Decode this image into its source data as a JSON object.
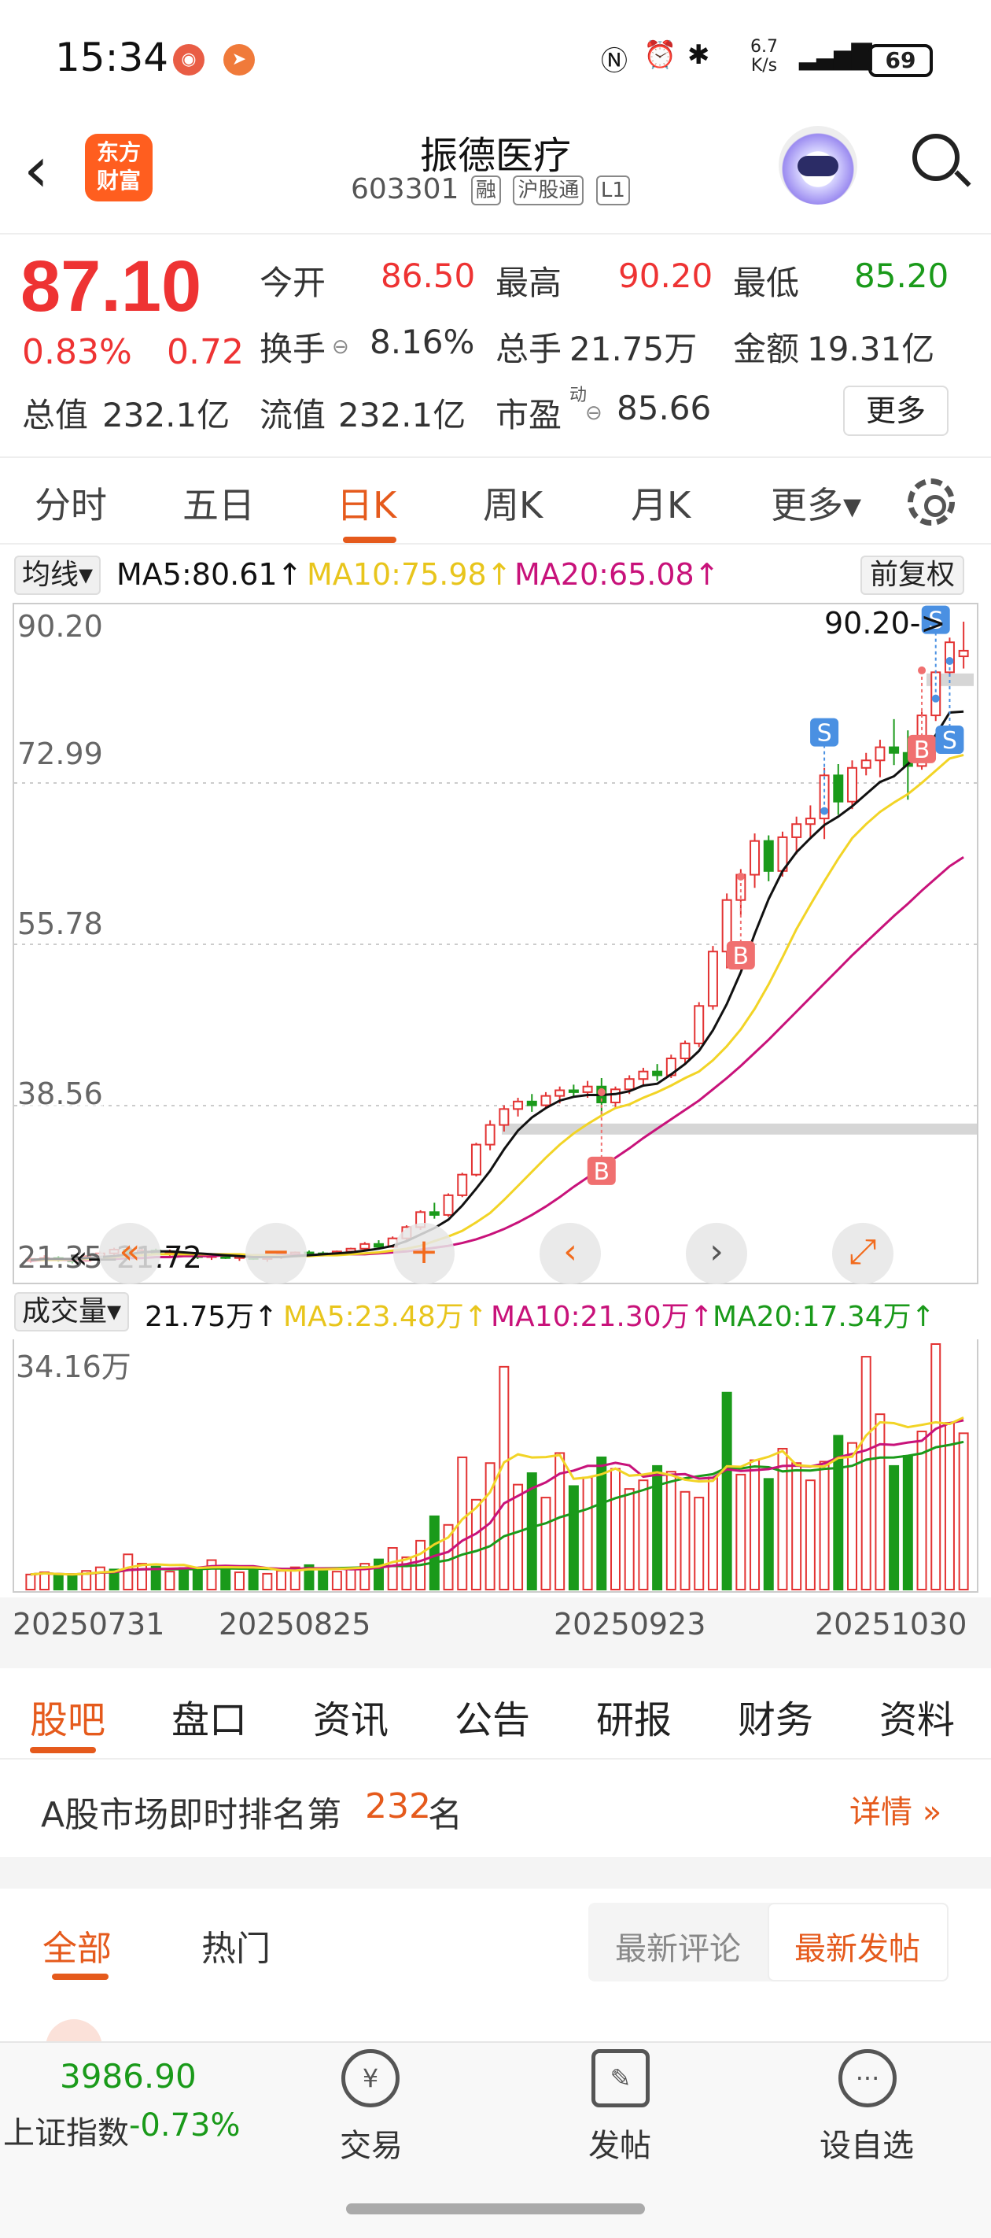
{
  "status_bar": {
    "time": "15:34",
    "net_speed_top": "6.7",
    "net_speed_unit": "K/s",
    "battery": "69"
  },
  "header": {
    "back_icon": "back-arrow",
    "logo_line1": "东方",
    "logo_line2": "财富",
    "title": "振德医疗",
    "code": "603301",
    "tags": [
      "融",
      "沪股通",
      "L1"
    ]
  },
  "quote": {
    "price": "87.10",
    "change_pct": "0.83%",
    "change": "0.72",
    "open_label": "今开",
    "open": "86.50",
    "high_label": "最高",
    "high": "90.20",
    "low_label": "最低",
    "low": "85.20",
    "turnover_label": "换手",
    "turnover": "8.16%",
    "volume_label": "总手",
    "volume": "21.75万",
    "amount_label": "金额",
    "amount": "19.31亿",
    "mktcap_label": "总值",
    "mktcap": "232.1亿",
    "float_label": "流值",
    "float": "232.1亿",
    "pe_label": "市盈",
    "pe_sup": "动",
    "pe": "85.66",
    "more_button": "更多"
  },
  "chart_tabs": [
    "分时",
    "五日",
    "日K",
    "周K",
    "月K",
    "更多▾"
  ],
  "active_tab": "日K",
  "ma_bar": {
    "selector": "均线▾",
    "ma5": "MA5:80.61↑",
    "ma10": "MA10:75.98↑",
    "ma20": "MA20:65.08↑",
    "adjust": "前复权"
  },
  "main_chart": {
    "y_ticks": [
      "90.20",
      "72.99",
      "55.78",
      "38.56",
      "21.35"
    ],
    "high_marker": "90.20->",
    "low_marker": "21.72",
    "signal_s": "S",
    "signal_b": "B"
  },
  "vol_bar": {
    "selector": "成交量▾",
    "vol": "21.75万↑",
    "ma5": "MA5:23.48万↑",
    "ma10": "MA10:21.30万↑",
    "ma20": "MA20:17.34万↑",
    "max": "34.16万"
  },
  "dates": [
    "20250731",
    "20250825",
    "20250923",
    "20251030"
  ],
  "controls": {
    "fast_back": "«",
    "prev": "‹",
    "next": "›",
    "expand": "⤢",
    "zoom_out": "−",
    "zoom_in": "+"
  },
  "sub_tabs": [
    "股吧",
    "盘口",
    "资讯",
    "公告",
    "研报",
    "财务",
    "资料"
  ],
  "rank": {
    "prefix": "A股市场即时排名第",
    "number": "232",
    "suffix": "名",
    "detail": "详情 »"
  },
  "feed": {
    "tabs": [
      "全部",
      "热门"
    ],
    "sort": [
      "最新评论",
      "最新发帖"
    ]
  },
  "bottom": {
    "index_value": "3986.90",
    "index_name": "上证指数",
    "index_change": "-0.73%",
    "trade": "交易",
    "post": "发帖",
    "watch": "设自选"
  },
  "colors": {
    "up": "#e33333",
    "down": "#1a9a1a",
    "accent": "#e55a1c",
    "ma5": "#111111",
    "ma10": "#f2d426",
    "ma20": "#c8127a"
  },
  "chart_data": {
    "type": "candlestick",
    "ylim": [
      21.35,
      90.2
    ],
    "candles": [
      [
        22.0,
        22.3,
        21.8,
        22.2
      ],
      [
        22.2,
        22.6,
        22.0,
        22.3
      ],
      [
        22.3,
        22.5,
        21.9,
        22.1
      ],
      [
        22.1,
        22.4,
        21.72,
        22.0
      ],
      [
        22.0,
        22.6,
        21.9,
        22.5
      ],
      [
        22.5,
        23.0,
        22.3,
        22.8
      ],
      [
        22.8,
        23.4,
        22.6,
        23.2
      ],
      [
        23.2,
        23.5,
        22.8,
        22.9
      ],
      [
        22.9,
        23.3,
        22.6,
        23.1
      ],
      [
        23.1,
        23.3,
        22.7,
        22.8
      ],
      [
        22.8,
        23.2,
        22.5,
        22.9
      ],
      [
        22.9,
        23.0,
        22.4,
        22.6
      ],
      [
        22.6,
        22.9,
        22.2,
        22.4
      ],
      [
        22.4,
        22.7,
        22.1,
        22.6
      ],
      [
        22.6,
        22.8,
        22.2,
        22.3
      ],
      [
        22.3,
        22.6,
        22.0,
        22.5
      ],
      [
        22.5,
        22.7,
        22.1,
        22.2
      ],
      [
        22.2,
        22.5,
        21.9,
        22.4
      ],
      [
        22.4,
        22.8,
        22.2,
        22.7
      ],
      [
        22.7,
        23.0,
        22.5,
        22.9
      ],
      [
        22.9,
        23.1,
        22.6,
        22.8
      ],
      [
        22.8,
        23.0,
        22.5,
        22.7
      ],
      [
        22.7,
        23.1,
        22.6,
        23.0
      ],
      [
        23.0,
        23.4,
        22.8,
        23.3
      ],
      [
        23.3,
        24.0,
        23.1,
        23.8
      ],
      [
        23.8,
        24.2,
        23.3,
        23.5
      ],
      [
        23.5,
        24.6,
        23.4,
        24.4
      ],
      [
        24.4,
        25.8,
        24.2,
        25.6
      ],
      [
        25.6,
        27.4,
        25.3,
        27.2
      ],
      [
        27.2,
        28.2,
        26.5,
        26.9
      ],
      [
        26.9,
        29.2,
        26.7,
        29.0
      ],
      [
        29.0,
        31.4,
        28.8,
        31.2
      ],
      [
        31.2,
        34.6,
        31.0,
        34.4
      ],
      [
        34.4,
        37.0,
        33.8,
        36.5
      ],
      [
        36.5,
        38.6,
        35.8,
        38.2
      ],
      [
        38.2,
        39.4,
        37.4,
        39.0
      ],
      [
        39.0,
        39.8,
        37.9,
        38.6
      ],
      [
        38.6,
        40.0,
        38.2,
        39.6
      ],
      [
        39.6,
        40.6,
        38.8,
        40.2
      ],
      [
        40.2,
        40.8,
        39.5,
        40.0
      ],
      [
        40.0,
        41.2,
        39.4,
        40.6
      ],
      [
        40.6,
        41.5,
        37.6,
        38.9
      ],
      [
        38.9,
        40.6,
        38.2,
        40.3
      ],
      [
        40.3,
        41.8,
        39.8,
        41.4
      ],
      [
        41.4,
        42.6,
        40.8,
        42.2
      ],
      [
        42.2,
        43.0,
        41.2,
        41.8
      ],
      [
        41.8,
        44.0,
        41.5,
        43.6
      ],
      [
        43.6,
        45.5,
        43.0,
        45.2
      ],
      [
        45.2,
        49.6,
        44.8,
        49.2
      ],
      [
        49.2,
        55.6,
        48.8,
        55.0
      ],
      [
        55.0,
        61.2,
        53.2,
        60.5
      ],
      [
        60.5,
        63.8,
        58.9,
        63.2
      ],
      [
        63.2,
        67.6,
        61.8,
        66.8
      ],
      [
        66.8,
        67.4,
        62.5,
        63.6
      ],
      [
        63.6,
        67.8,
        63.0,
        67.2
      ],
      [
        67.2,
        69.4,
        65.4,
        68.6
      ],
      [
        68.6,
        70.6,
        67.2,
        69.2
      ],
      [
        69.2,
        74.6,
        67.0,
        73.8
      ],
      [
        73.8,
        75.0,
        69.6,
        71.0
      ],
      [
        71.0,
        75.4,
        70.2,
        74.6
      ],
      [
        74.6,
        76.2,
        73.8,
        75.4
      ],
      [
        75.4,
        77.6,
        73.6,
        76.8
      ],
      [
        76.8,
        79.8,
        74.9,
        76.2
      ],
      [
        76.2,
        78.6,
        71.2,
        74.8
      ],
      [
        74.8,
        80.6,
        74.4,
        80.2
      ],
      [
        80.2,
        85.0,
        79.6,
        84.8
      ],
      [
        84.8,
        88.5,
        84.4,
        88.0
      ],
      [
        86.5,
        90.2,
        85.2,
        87.1
      ]
    ],
    "volume": [
      2.1,
      2.4,
      2.0,
      1.9,
      2.6,
      3.1,
      2.8,
      4.9,
      3.6,
      3.2,
      2.5,
      3.0,
      2.7,
      4.1,
      3.3,
      2.4,
      2.9,
      2.2,
      2.6,
      3.1,
      3.4,
      2.8,
      2.5,
      3.0,
      3.6,
      4.2,
      5.8,
      4.5,
      6.8,
      10.2,
      9.0,
      18.4,
      12.5,
      17.6,
      31.0,
      14.6,
      16.2,
      12.8,
      19.0,
      14.4,
      15.6,
      18.4,
      16.8,
      14.0,
      15.2,
      17.2,
      16.4,
      13.6,
      12.8,
      15.6,
      27.4,
      16.0,
      18.0,
      15.4,
      19.6,
      17.6,
      15.2,
      17.8,
      21.4,
      20.4,
      32.4,
      24.4,
      17.2,
      18.6,
      22.0,
      34.16,
      23.2,
      21.75
    ],
    "volume_up": [
      true,
      true,
      false,
      false,
      true,
      true,
      false,
      true,
      true,
      false,
      true,
      false,
      false,
      true,
      false,
      true,
      false,
      true,
      true,
      true,
      false,
      false,
      true,
      true,
      true,
      false,
      true,
      true,
      true,
      false,
      true,
      true,
      true,
      true,
      true,
      true,
      false,
      true,
      true,
      false,
      true,
      false,
      true,
      true,
      true,
      false,
      true,
      true,
      true,
      true,
      false,
      true,
      true,
      false,
      true,
      true,
      true,
      true,
      false,
      true,
      true,
      true,
      false,
      false,
      true,
      true,
      true,
      true
    ],
    "ma5": [
      22.1,
      22.2,
      22.2,
      22.2,
      22.3,
      22.4,
      22.5,
      22.7,
      22.9,
      23.0,
      23.0,
      22.9,
      22.8,
      22.7,
      22.6,
      22.5,
      22.4,
      22.4,
      22.4,
      22.5,
      22.6,
      22.7,
      22.8,
      22.9,
      23.1,
      23.3,
      23.6,
      24.1,
      24.8,
      25.5,
      26.4,
      27.9,
      29.7,
      31.6,
      33.9,
      35.9,
      37.3,
      38.3,
      39.1,
      39.5,
      39.7,
      39.7,
      39.8,
      40.1,
      40.7,
      40.9,
      41.9,
      43.0,
      44.4,
      46.6,
      49.4,
      52.8,
      56.9,
      60.6,
      63.6,
      65.6,
      67.1,
      68.5,
      69.4,
      70.5,
      71.8,
      73.1,
      73.7,
      75.0,
      76.4,
      78.1,
      80.5,
      80.6
    ],
    "ma10": [
      22.1,
      22.1,
      22.1,
      22.2,
      22.2,
      22.3,
      22.4,
      22.5,
      22.6,
      22.7,
      22.7,
      22.7,
      22.7,
      22.7,
      22.7,
      22.7,
      22.6,
      22.6,
      22.5,
      22.5,
      22.5,
      22.6,
      22.6,
      22.7,
      22.8,
      22.9,
      23.1,
      23.3,
      23.6,
      24.1,
      24.6,
      25.2,
      26.1,
      27.1,
      28.5,
      30.0,
      31.5,
      33.0,
      34.4,
      35.6,
      36.6,
      37.5,
      38.3,
      38.7,
      39.4,
      40.0,
      40.7,
      41.5,
      42.2,
      43.4,
      44.9,
      46.7,
      48.9,
      51.5,
      54.4,
      57.4,
      60.0,
      62.5,
      64.9,
      67.1,
      68.6,
      69.9,
      70.9,
      71.8,
      73.0,
      74.3,
      75.6,
      75.98
    ],
    "ma20": [
      22.0,
      22.1,
      22.1,
      22.1,
      22.1,
      22.2,
      22.2,
      22.3,
      22.3,
      22.4,
      22.4,
      22.5,
      22.5,
      22.5,
      22.6,
      22.6,
      22.6,
      22.6,
      22.6,
      22.6,
      22.6,
      22.6,
      22.7,
      22.7,
      22.7,
      22.8,
      22.9,
      23.0,
      23.2,
      23.4,
      23.6,
      23.9,
      24.3,
      24.8,
      25.4,
      26.1,
      26.9,
      27.8,
      28.8,
      29.9,
      30.9,
      31.9,
      33.0,
      34.0,
      35.1,
      36.1,
      37.1,
      38.1,
      39.1,
      40.3,
      41.5,
      42.8,
      44.2,
      45.6,
      47.1,
      48.6,
      50.1,
      51.6,
      53.1,
      54.6,
      56.0,
      57.4,
      58.8,
      60.1,
      61.5,
      62.8,
      64.1,
      65.08
    ]
  }
}
